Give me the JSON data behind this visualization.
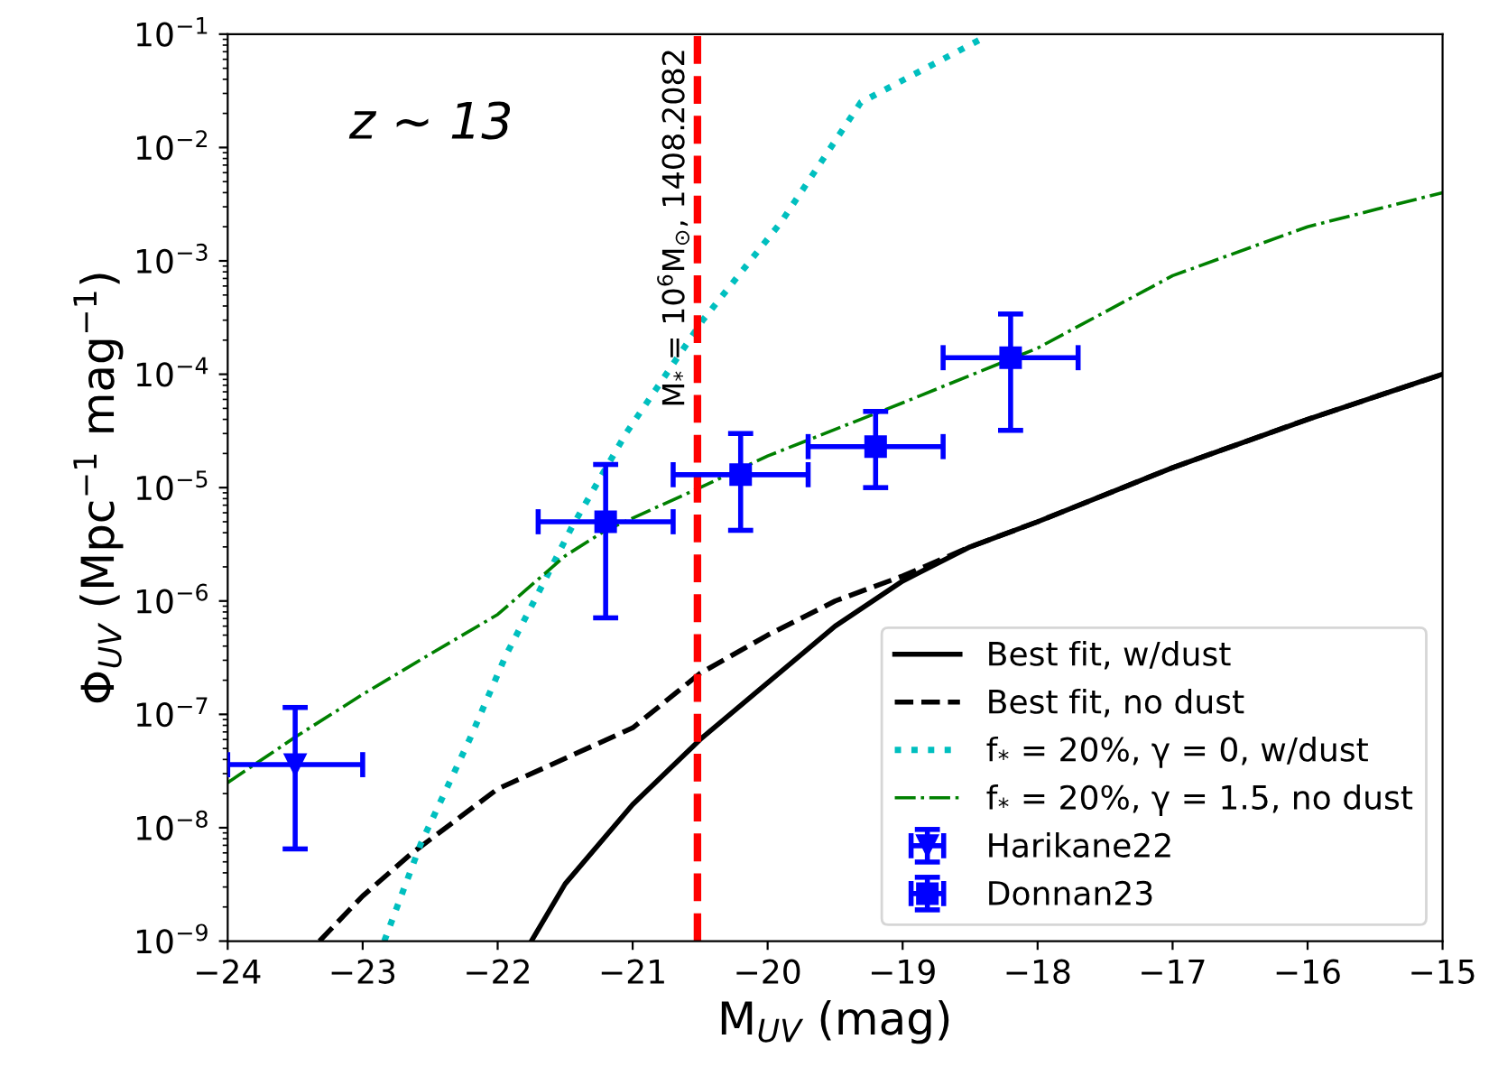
{
  "chart_data": {
    "type": "line",
    "xlabel": "M$_{UV}$ (mag)",
    "ylabel": "Φ$_{UV}$ (Mpc$^{−1}$ mag$^{−1}$)",
    "log": "y",
    "grid": false,
    "legend": "lower right",
    "xlim": [
      -24,
      -15
    ],
    "xticks": [
      {
        "value": -24,
        "label": "−24"
      },
      {
        "value": -23,
        "label": "−23"
      },
      {
        "value": -22,
        "label": "−22"
      },
      {
        "value": -21,
        "label": "−21"
      },
      {
        "value": -20,
        "label": "−20"
      },
      {
        "value": -19,
        "label": "−19"
      },
      {
        "value": -18,
        "label": "−18"
      },
      {
        "value": -17,
        "label": "−17"
      },
      {
        "value": -16,
        "label": "−16"
      },
      {
        "value": -15,
        "label": "−15"
      }
    ],
    "ylim": [
      1e-09,
      0.1
    ],
    "yticks": [
      {
        "value": 1e-09,
        "label": "10$^{−9}$"
      },
      {
        "value": 1e-08,
        "label": "10$^{−8}$"
      },
      {
        "value": 1e-07,
        "label": "10$^{−7}$"
      },
      {
        "value": 1e-06,
        "label": "10$^{−6}$"
      },
      {
        "value": 1e-05,
        "label": "10$^{−5}$"
      },
      {
        "value": 0.0001,
        "label": "10$^{−4}$"
      },
      {
        "value": 0.001,
        "label": "10$^{−3}$"
      },
      {
        "value": 0.01,
        "label": "10$^{−2}$"
      },
      {
        "value": 0.1,
        "label": "10$^{−1}$"
      }
    ],
    "annotations": [
      "z ~ 13",
      {
        "text": "M$_{*}$ = 10$^{6}$M$_{⊙}$, 1408.2082",
        "x": -20.52
      }
    ],
    "ref_lines": [
      {
        "axis": "x",
        "value": -20.52,
        "color": "#ff0000",
        "line_style": "dashed"
      }
    ],
    "series": [
      {
        "name": "Best fit, w/dust",
        "color": "#000000",
        "line_style": "solid",
        "x": [
          -21.75,
          -21.5,
          -21,
          -20.5,
          -20,
          -19.5,
          -19,
          -18.5,
          -18,
          -17,
          -16,
          -15
        ],
        "values": [
          1e-09,
          3.2e-09,
          1.6e-08,
          6e-08,
          1.9e-07,
          6e-07,
          1.5e-06,
          3e-06,
          5e-06,
          1.5e-05,
          4e-05,
          0.0001
        ]
      },
      {
        "name": "Best fit, no dust",
        "color": "#000000",
        "line_style": "dashed",
        "x": [
          -23.32,
          -23,
          -22.64,
          -22,
          -21,
          -20.5,
          -20,
          -19.5,
          -19,
          -18.5,
          -18,
          -17,
          -16,
          -15
        ],
        "values": [
          1e-09,
          2.5e-09,
          5.9e-09,
          2.2e-08,
          7.6e-08,
          2.3e-07,
          5e-07,
          1e-06,
          1.66e-06,
          3e-06,
          5e-06,
          1.5e-05,
          4e-05,
          0.0001
        ]
      },
      {
        "name": "f$_{*}$ = 20%, γ = 0, w/dust",
        "color": "#00bfbf",
        "line_style": "dotted",
        "x": [
          -22.84,
          -22.57,
          -22.2,
          -21.94,
          -21.68,
          -21.45,
          -21.05,
          -20.48,
          -19.9,
          -19.31,
          -18.43
        ],
        "values": [
          1e-09,
          7.2e-09,
          6.3e-08,
          3.3e-07,
          1.3e-06,
          4.5e-06,
          3e-05,
          0.0003,
          0.0022,
          0.025,
          0.089
        ]
      },
      {
        "name": "f$_{*}$ = 20%, γ = 1.5, no dust",
        "color": "#008000",
        "line_style": "dashdot",
        "x": [
          -24,
          -23.5,
          -23,
          -22.5,
          -22,
          -21.5,
          -21.2,
          -20.5,
          -20,
          -19,
          -18,
          -17,
          -16,
          -15
        ],
        "values": [
          2.5e-08,
          6.3e-08,
          1.5e-07,
          3.4e-07,
          7.6e-07,
          2.5e-06,
          4.2e-06,
          1e-05,
          1.9e-05,
          5.6e-05,
          0.00017,
          0.00074,
          0.002,
          0.004
        ]
      },
      {
        "name": "Harikane22",
        "type": "scatter",
        "color": "#0000ff",
        "marker": "triangle",
        "x": [
          -23.5
        ],
        "values": [
          3.6e-08
        ],
        "errors": [
          [
            6.5e-09,
            1.15e-07
          ]
        ],
        "xerrors": [
          [
            -24.0,
            -23.0
          ]
        ]
      },
      {
        "name": "Donnan23",
        "type": "scatter",
        "color": "#0000ff",
        "marker": "square",
        "x": [
          -21.2,
          -20.2,
          -19.2,
          -18.2
        ],
        "values": [
          5e-06,
          1.3e-05,
          2.3e-05,
          0.00014
        ],
        "errors": [
          [
            7.1e-07,
            1.6e-05
          ],
          [
            4.2e-06,
            3e-05
          ],
          [
            1e-05,
            4.7e-05
          ],
          [
            3.2e-05,
            0.00034
          ]
        ],
        "xerrors": [
          [
            -21.7,
            -20.7
          ],
          [
            -20.7,
            -19.7
          ],
          [
            -19.7,
            -18.7
          ],
          [
            -18.7,
            -17.7
          ]
        ]
      }
    ]
  }
}
